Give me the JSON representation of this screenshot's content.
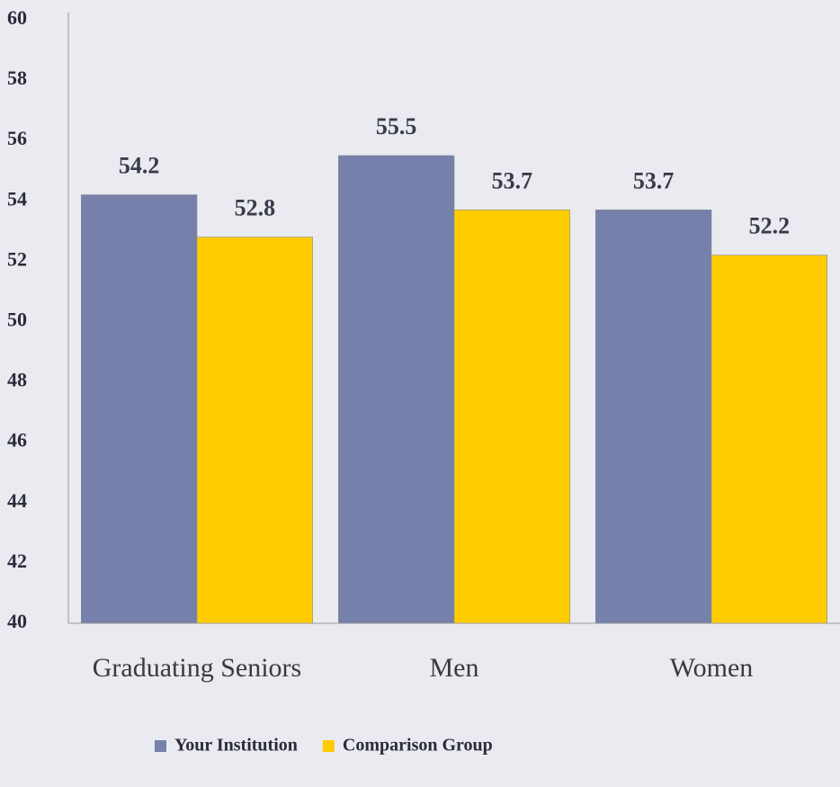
{
  "chart_data": {
    "type": "bar",
    "categories": [
      "Graduating Seniors",
      "Men",
      "Women"
    ],
    "series": [
      {
        "name": "Your Institution",
        "color": "#7580ab",
        "values": [
          54.2,
          55.5,
          53.7
        ]
      },
      {
        "name": "Comparison Group",
        "color": "#ffcc00",
        "values": [
          52.8,
          53.7,
          52.2
        ]
      }
    ],
    "ylim": [
      40,
      60
    ],
    "yticks": [
      40,
      42,
      44,
      46,
      48,
      50,
      52,
      54,
      56,
      58,
      60
    ],
    "grid": false,
    "legend": "bottom"
  }
}
